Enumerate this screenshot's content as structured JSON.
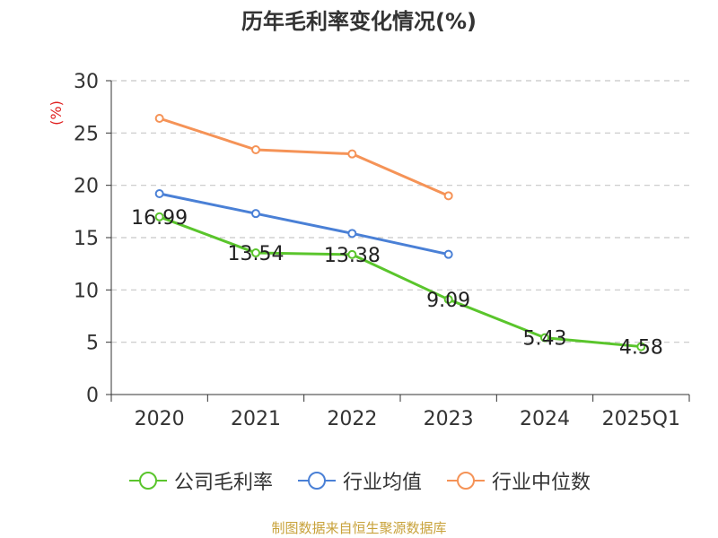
{
  "chart_data": {
    "type": "line",
    "title": "历年毛利率变化情况(%)",
    "ylabel": "(%)",
    "xlabel": "",
    "categories": [
      "2020",
      "2021",
      "2022",
      "2023",
      "2024",
      "2025Q1"
    ],
    "ylim": [
      0,
      30
    ],
    "yticks": [
      "0",
      "5",
      "10",
      "15",
      "20",
      "25",
      "30"
    ],
    "grid": true,
    "legend_position": "bottom",
    "series": [
      {
        "name": "公司毛利率",
        "color": "#5ac52c",
        "values": [
          16.99,
          13.54,
          13.38,
          9.09,
          5.43,
          4.58
        ],
        "labels": [
          "16.99",
          "13.54",
          "13.38",
          "9.09",
          "5.43",
          "4.58"
        ]
      },
      {
        "name": "行业均值",
        "color": "#4a80d6",
        "values": [
          19.2,
          17.3,
          15.4,
          13.4,
          null,
          null
        ]
      },
      {
        "name": "行业中位数",
        "color": "#f59357",
        "values": [
          26.4,
          23.4,
          23.0,
          19.0,
          null,
          null
        ]
      }
    ]
  },
  "source": "制图数据来自恒生聚源数据库"
}
